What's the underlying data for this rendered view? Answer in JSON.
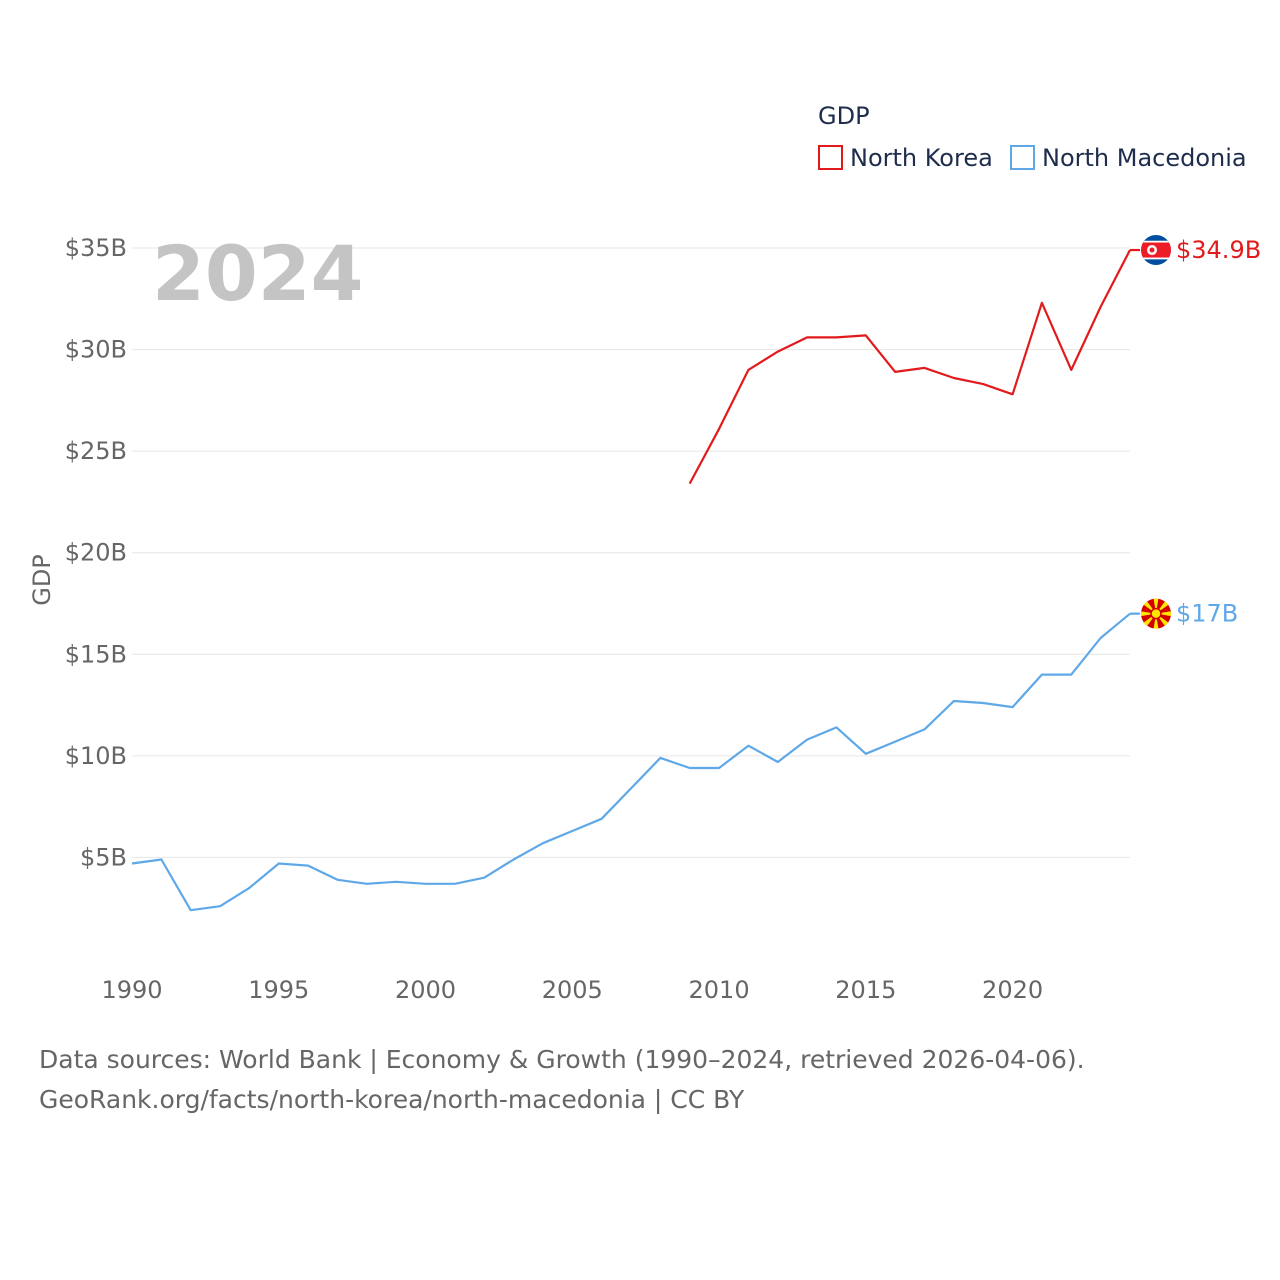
{
  "chart_data": {
    "type": "line",
    "legend_title": "GDP",
    "ylabel": "GDP",
    "year_watermark": "2024",
    "ylim": [
      0,
      35
    ],
    "xlim": [
      1990,
      2024
    ],
    "y_ticks": [
      {
        "value": 5,
        "label": "$5B"
      },
      {
        "value": 10,
        "label": "$10B"
      },
      {
        "value": 15,
        "label": "$15B"
      },
      {
        "value": 20,
        "label": "$20B"
      },
      {
        "value": 25,
        "label": "$25B"
      },
      {
        "value": 30,
        "label": "$30B"
      },
      {
        "value": 35,
        "label": "$35B"
      }
    ],
    "x_ticks": [
      {
        "value": 1990,
        "label": "1990"
      },
      {
        "value": 1995,
        "label": "1995"
      },
      {
        "value": 2000,
        "label": "2000"
      },
      {
        "value": 2005,
        "label": "2005"
      },
      {
        "value": 2010,
        "label": "2010"
      },
      {
        "value": 2015,
        "label": "2015"
      },
      {
        "value": 2020,
        "label": "2020"
      }
    ],
    "series": [
      {
        "name": "North Korea",
        "color": "#e31a1c",
        "end_label": "$34.9B",
        "flag": "north-korea",
        "x": [
          2009,
          2010,
          2011,
          2012,
          2013,
          2014,
          2015,
          2016,
          2017,
          2018,
          2019,
          2020,
          2021,
          2022,
          2023,
          2024
        ],
        "values": [
          23.4,
          26.1,
          29.0,
          29.9,
          30.6,
          30.6,
          30.7,
          28.9,
          29.1,
          28.6,
          28.3,
          27.8,
          32.3,
          29.0,
          32.1,
          34.9
        ]
      },
      {
        "name": "North Macedonia",
        "color": "#5fa8e8",
        "end_label": "$17B",
        "flag": "north-macedonia",
        "x": [
          1990,
          1991,
          1992,
          1993,
          1994,
          1995,
          1996,
          1997,
          1998,
          1999,
          2000,
          2001,
          2002,
          2003,
          2004,
          2005,
          2006,
          2007,
          2008,
          2009,
          2010,
          2011,
          2012,
          2013,
          2014,
          2015,
          2016,
          2017,
          2018,
          2019,
          2020,
          2021,
          2022,
          2023,
          2024
        ],
        "values": [
          4.7,
          4.9,
          2.4,
          2.6,
          3.5,
          4.7,
          4.6,
          3.9,
          3.7,
          3.8,
          3.7,
          3.7,
          4.0,
          4.9,
          5.7,
          6.3,
          6.9,
          8.4,
          9.9,
          9.4,
          9.4,
          10.5,
          9.7,
          10.8,
          11.4,
          10.1,
          10.7,
          11.3,
          12.7,
          12.6,
          12.4,
          14.0,
          14.0,
          15.8,
          17.0
        ]
      }
    ]
  },
  "footer": {
    "line1": "Data sources: World Bank | Economy & Growth (1990–2024, retrieved 2026-04-06).",
    "line2": "GeoRank.org/facts/north-korea/north-macedonia | CC BY"
  }
}
